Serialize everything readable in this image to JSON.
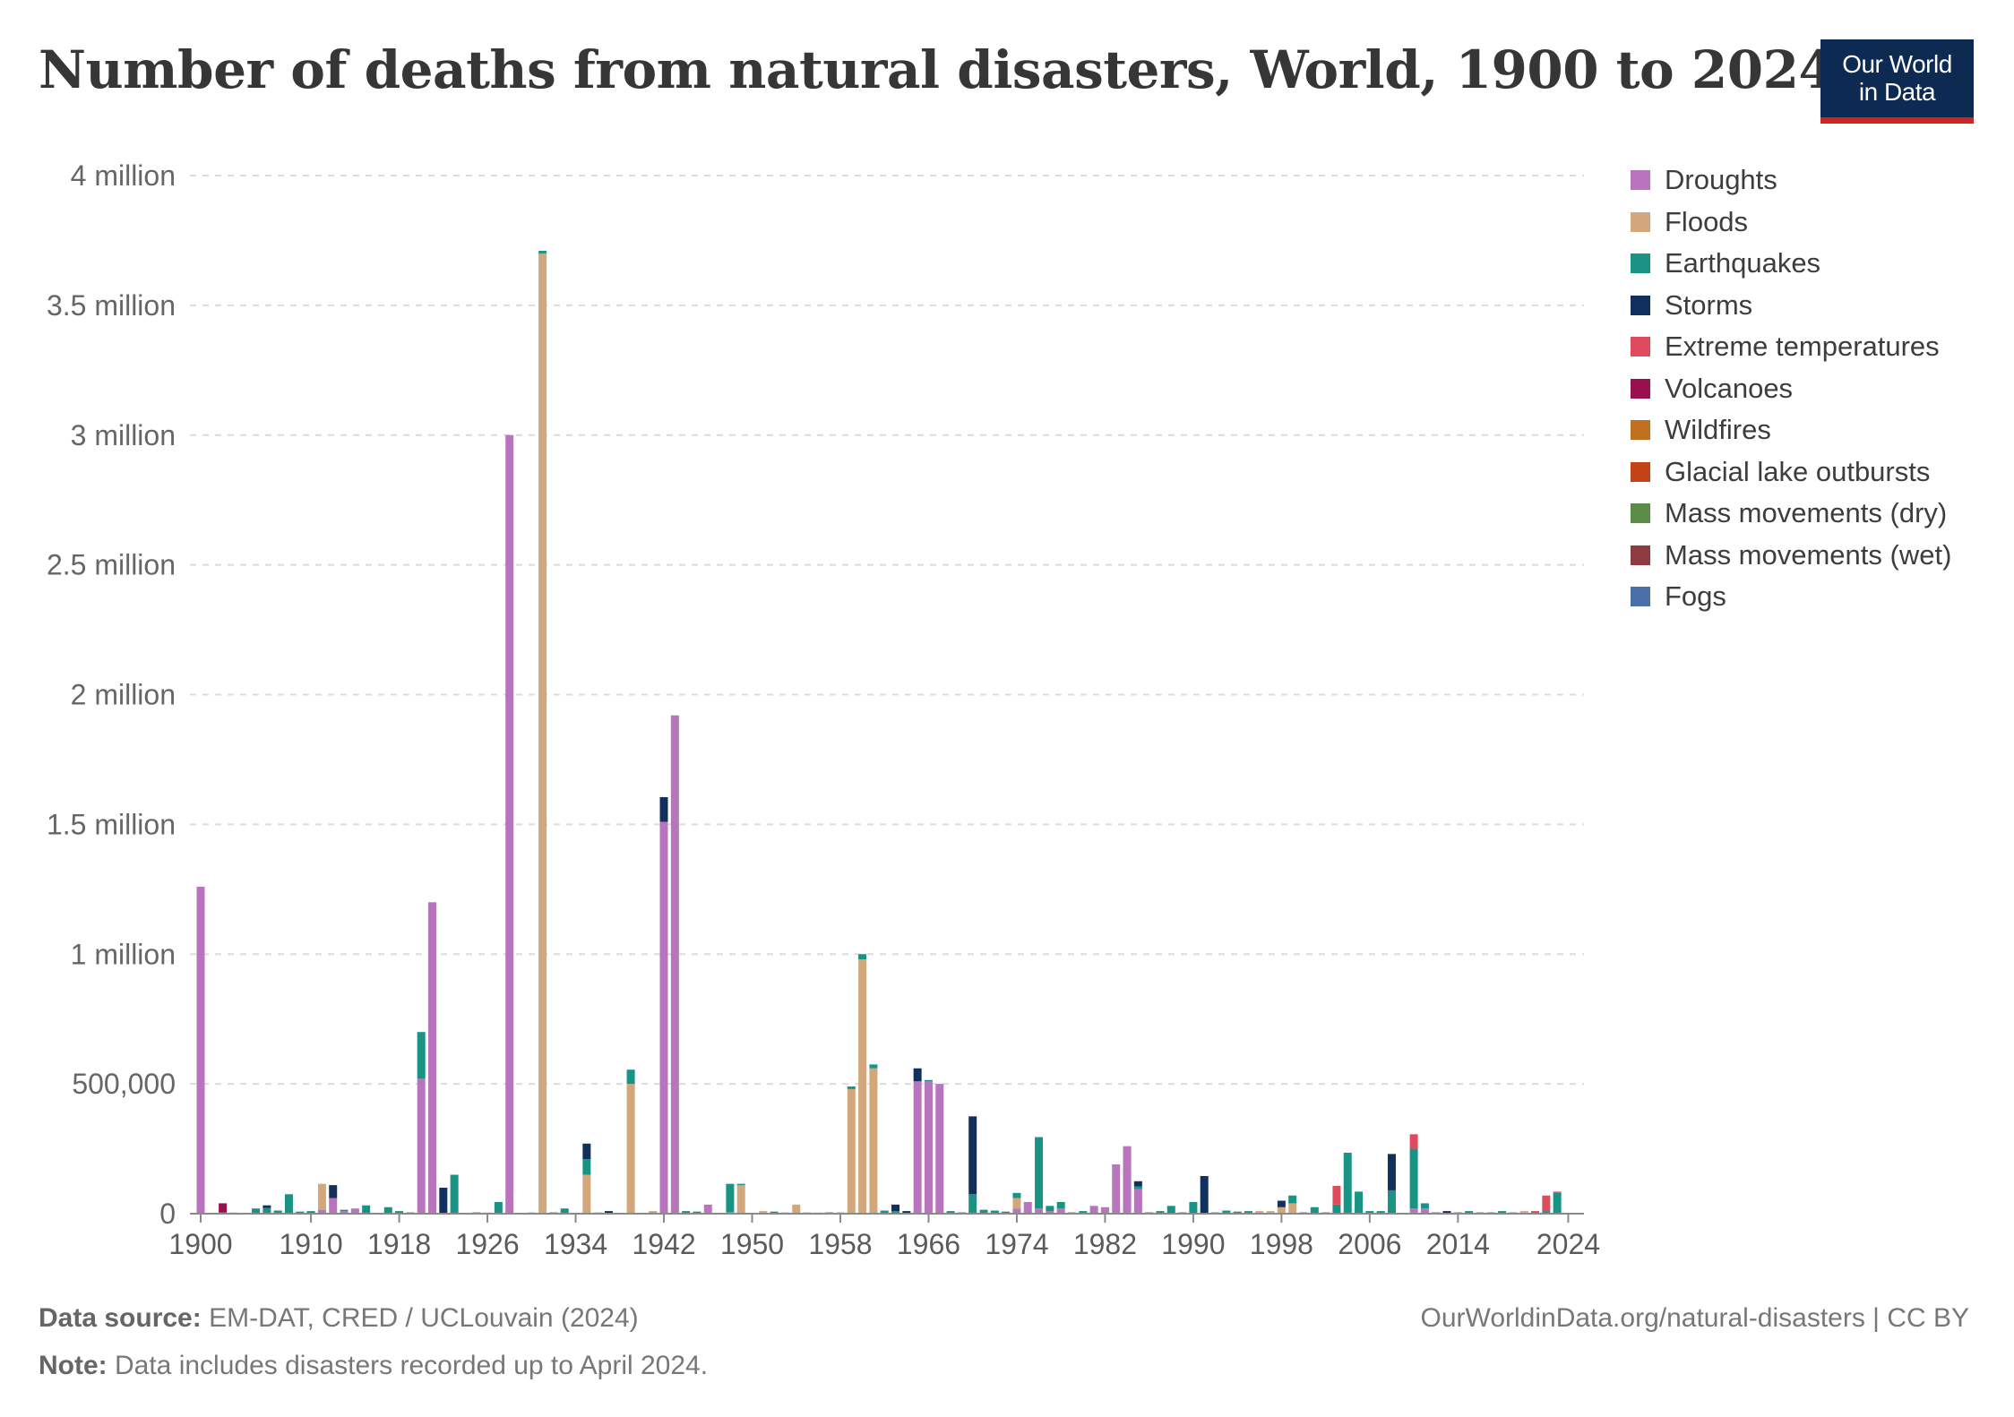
{
  "title": "Number of deaths from natural disasters, World, 1900 to 2024",
  "logo": {
    "line1": "Our World",
    "line2": "in Data",
    "bg": "#0d2a52",
    "accent": "#ce261e"
  },
  "footer": {
    "source_label": "Data source:",
    "source_text": "EM-DAT, CRED / UCLouvain (2024)",
    "url_text": "OurWorldinData.org/natural-disasters | CC BY",
    "note_label": "Note:",
    "note_text": "Data includes disasters recorded up to April 2024."
  },
  "chart_data": {
    "type": "bar",
    "stacked": true,
    "ylim": [
      0,
      4000000
    ],
    "y_ticks": [
      {
        "value": 0,
        "label": "0"
      },
      {
        "value": 500000,
        "label": "500,000"
      },
      {
        "value": 1000000,
        "label": "1 million"
      },
      {
        "value": 1500000,
        "label": "1.5 million"
      },
      {
        "value": 2000000,
        "label": "2 million"
      },
      {
        "value": 2500000,
        "label": "2.5 million"
      },
      {
        "value": 3000000,
        "label": "3 million"
      },
      {
        "value": 3500000,
        "label": "3.5 million"
      },
      {
        "value": 4000000,
        "label": "4 million"
      }
    ],
    "x_ticks": [
      "1900",
      "1910",
      "1918",
      "1926",
      "1934",
      "1942",
      "1950",
      "1958",
      "1966",
      "1974",
      "1982",
      "1990",
      "1998",
      "2006",
      "2014",
      "2024"
    ],
    "x_range": [
      1900,
      2024
    ],
    "grid": "horizontal dashed",
    "legend_position": "right",
    "series_order": [
      "Droughts",
      "Floods",
      "Earthquakes",
      "Storms",
      "Extreme temperatures",
      "Volcanoes",
      "Wildfires",
      "Glacial lake outbursts",
      "Mass movements (dry)",
      "Mass movements (wet)",
      "Fogs"
    ],
    "series": [
      {
        "name": "Droughts",
        "color": "#b874bc"
      },
      {
        "name": "Floods",
        "color": "#d2a77b"
      },
      {
        "name": "Earthquakes",
        "color": "#1a9385"
      },
      {
        "name": "Storms",
        "color": "#12305e"
      },
      {
        "name": "Extreme temperatures",
        "color": "#e04a5d"
      },
      {
        "name": "Volcanoes",
        "color": "#9a0f4d"
      },
      {
        "name": "Wildfires",
        "color": "#c0701e"
      },
      {
        "name": "Glacial lake outbursts",
        "color": "#c34316"
      },
      {
        "name": "Mass movements (dry)",
        "color": "#5b8c47"
      },
      {
        "name": "Mass movements (wet)",
        "color": "#8e3a3f"
      },
      {
        "name": "Fogs",
        "color": "#4b70a8"
      }
    ],
    "bars": [
      {
        "year": 1900,
        "Droughts": 1260000
      },
      {
        "year": 1902,
        "Volcanoes": 35000,
        "Earthquakes": 5000
      },
      {
        "year": 1903,
        "Earthquakes": 4000
      },
      {
        "year": 1905,
        "Earthquakes": 20000
      },
      {
        "year": 1906,
        "Earthquakes": 22000,
        "Storms": 10000
      },
      {
        "year": 1907,
        "Earthquakes": 12000
      },
      {
        "year": 1908,
        "Earthquakes": 75000
      },
      {
        "year": 1909,
        "Earthquakes": 8000
      },
      {
        "year": 1910,
        "Earthquakes": 10000
      },
      {
        "year": 1911,
        "Floods": 100000,
        "Droughts": 15000
      },
      {
        "year": 1912,
        "Droughts": 60000,
        "Storms": 50000
      },
      {
        "year": 1913,
        "Droughts": 10000,
        "Earthquakes": 5000
      },
      {
        "year": 1914,
        "Droughts": 20000
      },
      {
        "year": 1915,
        "Earthquakes": 32000
      },
      {
        "year": 1917,
        "Earthquakes": 25000
      },
      {
        "year": 1918,
        "Earthquakes": 10000
      },
      {
        "year": 1919,
        "Earthquakes": 5000
      },
      {
        "year": 1920,
        "Earthquakes": 180000,
        "Droughts": 520000
      },
      {
        "year": 1921,
        "Droughts": 1200000
      },
      {
        "year": 1922,
        "Storms": 100000
      },
      {
        "year": 1923,
        "Earthquakes": 150000
      },
      {
        "year": 1925,
        "Earthquakes": 5000
      },
      {
        "year": 1926,
        "Earthquakes": 4000
      },
      {
        "year": 1927,
        "Earthquakes": 45000
      },
      {
        "year": 1928,
        "Droughts": 3000000
      },
      {
        "year": 1930,
        "Floods": 5000
      },
      {
        "year": 1931,
        "Floods": 3700000,
        "Earthquakes": 10000
      },
      {
        "year": 1932,
        "Earthquakes": 5000
      },
      {
        "year": 1933,
        "Earthquakes": 20000
      },
      {
        "year": 1935,
        "Storms": 60000,
        "Earthquakes": 60000,
        "Floods": 150000
      },
      {
        "year": 1936,
        "Storms": 4000
      },
      {
        "year": 1937,
        "Storms": 10000
      },
      {
        "year": 1939,
        "Earthquakes": 55000,
        "Floods": 500000
      },
      {
        "year": 1941,
        "Droughts": 5000,
        "Floods": 5000
      },
      {
        "year": 1942,
        "Storms": 95000,
        "Droughts": 1510000
      },
      {
        "year": 1943,
        "Droughts": 1920000
      },
      {
        "year": 1944,
        "Earthquakes": 10000
      },
      {
        "year": 1945,
        "Earthquakes": 8000
      },
      {
        "year": 1946,
        "Droughts": 35000
      },
      {
        "year": 1948,
        "Earthquakes": 110000,
        "Floods": 5000
      },
      {
        "year": 1949,
        "Floods": 110000,
        "Earthquakes": 5000
      },
      {
        "year": 1951,
        "Floods": 10000
      },
      {
        "year": 1952,
        "Earthquakes": 8000
      },
      {
        "year": 1953,
        "Floods": 5000
      },
      {
        "year": 1954,
        "Floods": 35000
      },
      {
        "year": 1955,
        "Floods": 5000
      },
      {
        "year": 1956,
        "Earthquakes": 4000
      },
      {
        "year": 1957,
        "Earthquakes": 5000
      },
      {
        "year": 1958,
        "Floods": 5000
      },
      {
        "year": 1959,
        "Floods": 480000,
        "Earthquakes": 10000
      },
      {
        "year": 1960,
        "Floods": 980000,
        "Earthquakes": 20000
      },
      {
        "year": 1961,
        "Floods": 560000,
        "Earthquakes": 15000
      },
      {
        "year": 1962,
        "Earthquakes": 12000
      },
      {
        "year": 1963,
        "Storms": 25000,
        "Earthquakes": 10000
      },
      {
        "year": 1964,
        "Storms": 10000
      },
      {
        "year": 1965,
        "Storms": 50000,
        "Droughts": 510000
      },
      {
        "year": 1966,
        "Droughts": 510000,
        "Earthquakes": 5000
      },
      {
        "year": 1967,
        "Droughts": 500000
      },
      {
        "year": 1968,
        "Earthquakes": 10000
      },
      {
        "year": 1969,
        "Earthquakes": 5000
      },
      {
        "year": 1970,
        "Storms": 300000,
        "Earthquakes": 75000
      },
      {
        "year": 1971,
        "Earthquakes": 15000
      },
      {
        "year": 1972,
        "Earthquakes": 12000
      },
      {
        "year": 1973,
        "Earthquakes": 8000
      },
      {
        "year": 1974,
        "Earthquakes": 20000,
        "Floods": 40000,
        "Droughts": 20000
      },
      {
        "year": 1975,
        "Droughts": 45000
      },
      {
        "year": 1976,
        "Earthquakes": 275000,
        "Droughts": 20000
      },
      {
        "year": 1977,
        "Earthquakes": 20000,
        "Droughts": 10000
      },
      {
        "year": 1978,
        "Earthquakes": 25000,
        "Droughts": 20000
      },
      {
        "year": 1979,
        "Earthquakes": 5000
      },
      {
        "year": 1980,
        "Earthquakes": 10000
      },
      {
        "year": 1981,
        "Droughts": 30000
      },
      {
        "year": 1982,
        "Droughts": 25000
      },
      {
        "year": 1983,
        "Droughts": 190000
      },
      {
        "year": 1984,
        "Droughts": 260000
      },
      {
        "year": 1985,
        "Storms": 20000,
        "Earthquakes": 10000,
        "Droughts": 95000
      },
      {
        "year": 1986,
        "Earthquakes": 5000
      },
      {
        "year": 1987,
        "Earthquakes": 10000
      },
      {
        "year": 1988,
        "Earthquakes": 30000
      },
      {
        "year": 1989,
        "Earthquakes": 5000
      },
      {
        "year": 1990,
        "Earthquakes": 45000
      },
      {
        "year": 1991,
        "Storms": 145000
      },
      {
        "year": 1992,
        "Earthquakes": 5000
      },
      {
        "year": 1993,
        "Earthquakes": 12000
      },
      {
        "year": 1994,
        "Earthquakes": 8000
      },
      {
        "year": 1995,
        "Earthquakes": 10000
      },
      {
        "year": 1996,
        "Floods": 10000
      },
      {
        "year": 1997,
        "Floods": 10000
      },
      {
        "year": 1998,
        "Storms": 25000,
        "Floods": 25000
      },
      {
        "year": 1999,
        "Earthquakes": 30000,
        "Floods": 40000
      },
      {
        "year": 2000,
        "Earthquakes": 5000
      },
      {
        "year": 2001,
        "Earthquakes": 25000
      },
      {
        "year": 2002,
        "Earthquakes": 5000
      },
      {
        "year": 2003,
        "Extreme temperatures": 72000,
        "Earthquakes": 35000
      },
      {
        "year": 2004,
        "Earthquakes": 235000
      },
      {
        "year": 2005,
        "Earthquakes": 85000
      },
      {
        "year": 2006,
        "Earthquakes": 10000
      },
      {
        "year": 2007,
        "Earthquakes": 10000
      },
      {
        "year": 2008,
        "Storms": 140000,
        "Earthquakes": 90000
      },
      {
        "year": 2010,
        "Extreme temperatures": 56000,
        "Earthquakes": 230000,
        "Droughts": 20000
      },
      {
        "year": 2011,
        "Earthquakes": 20000,
        "Droughts": 20000
      },
      {
        "year": 2012,
        "Earthquakes": 5000
      },
      {
        "year": 2013,
        "Storms": 10000
      },
      {
        "year": 2014,
        "Earthquakes": 5000
      },
      {
        "year": 2015,
        "Earthquakes": 10000
      },
      {
        "year": 2016,
        "Earthquakes": 5000
      },
      {
        "year": 2017,
        "Earthquakes": 5000
      },
      {
        "year": 2018,
        "Earthquakes": 10000
      },
      {
        "year": 2019,
        "Extreme temperatures": 5000
      },
      {
        "year": 2020,
        "Floods": 10000
      },
      {
        "year": 2021,
        "Extreme temperatures": 10000
      },
      {
        "year": 2022,
        "Extreme temperatures": 60000,
        "Earthquakes": 10000
      },
      {
        "year": 2023,
        "Earthquakes": 80000,
        "Extreme temperatures": 5000
      }
    ]
  }
}
